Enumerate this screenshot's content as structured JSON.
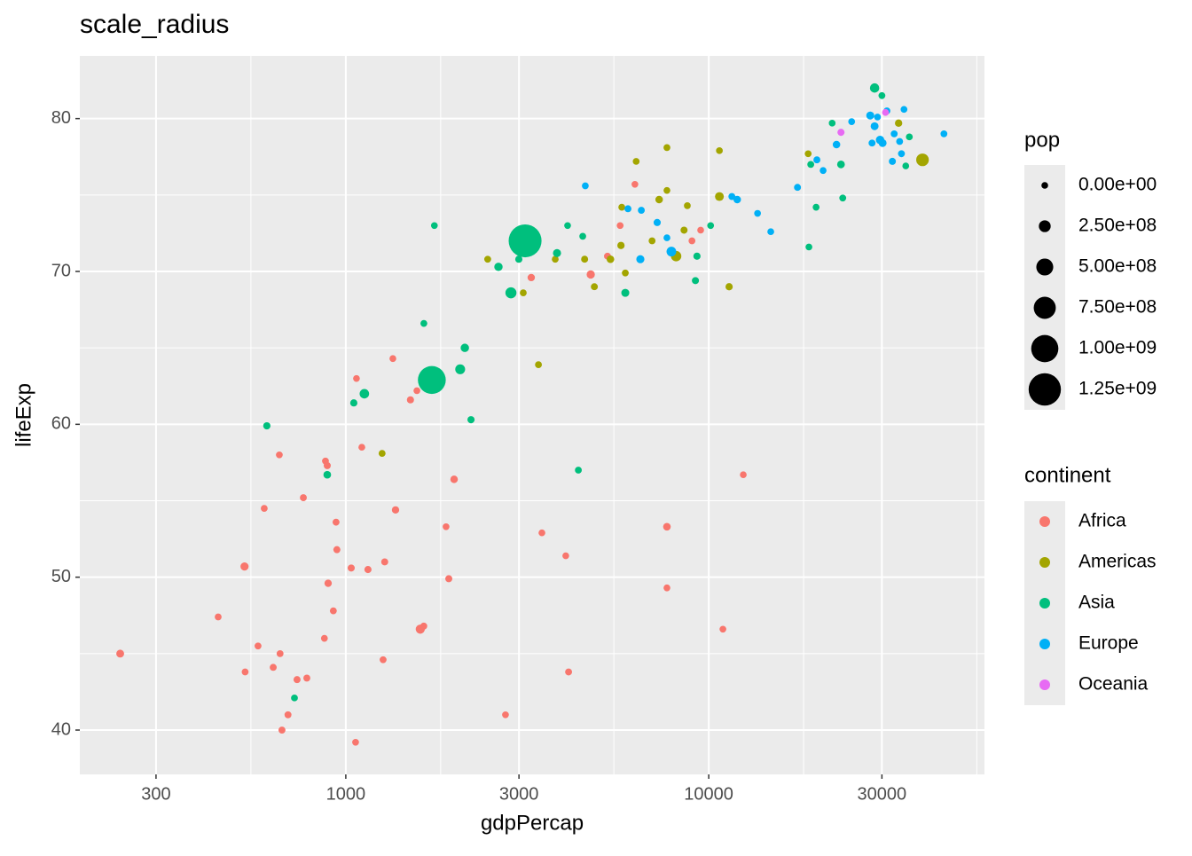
{
  "chart_data": {
    "type": "scatter",
    "title": "scale_radius",
    "x_label": "gdpPercap",
    "y_label": "lifeExp",
    "xlog": true,
    "xlim": [
      185,
      57500
    ],
    "ylim": [
      37.1,
      84.1
    ],
    "xticks": [
      300,
      1000,
      3000,
      10000,
      30000
    ],
    "yticks": [
      40,
      50,
      60,
      70,
      80
    ],
    "grid": true,
    "size_title": "pop",
    "size_ticks": [
      {
        "value": 0,
        "label": "0.00e+00"
      },
      {
        "value": 250000000,
        "label": "2.50e+08"
      },
      {
        "value": 500000000,
        "label": "5.00e+08"
      },
      {
        "value": 750000000,
        "label": "7.50e+08"
      },
      {
        "value": 1000000000,
        "label": "1.00e+09"
      },
      {
        "value": 1250000000,
        "label": "1.25e+09"
      }
    ],
    "color_title": "continent",
    "legend": "right",
    "series": [
      {
        "name": "Africa",
        "color": "#F8766D",
        "x": [
          239,
          445,
          526,
          528,
          573,
          596,
          631,
          656,
          659,
          667,
          693,
          734,
          764,
          781,
          879,
          889,
          873,
          894,
          924,
          940,
          945,
          1035,
          1070,
          1064,
          1107,
          1151,
          1267,
          1280,
          1348,
          1371,
          1507,
          1570,
          1604,
          1640,
          1889,
          1922,
          1988,
          2754,
          3243,
          3470,
          4037,
          4110,
          4730,
          5260,
          5700,
          6260,
          7670,
          7670,
          8990,
          9500,
          10940,
          12450
        ],
        "values": [
          45.0,
          47.4,
          50.7,
          43.8,
          45.5,
          54.5,
          44.1,
          58.0,
          45.0,
          40.0,
          41.0,
          43.3,
          55.2,
          43.4,
          57.6,
          57.3,
          46.0,
          49.6,
          47.8,
          53.6,
          51.8,
          50.6,
          63.0,
          39.2,
          58.5,
          50.5,
          44.6,
          51.0,
          64.3,
          54.4,
          61.6,
          62.2,
          46.6,
          46.8,
          53.3,
          49.9,
          56.4,
          41.0,
          69.6,
          52.9,
          51.4,
          43.8,
          69.8,
          71.0,
          73.0,
          75.7,
          53.3,
          49.3,
          72.0,
          72.7,
          46.6,
          56.7
        ],
        "sizes": [
          55000000,
          6000000,
          68000000,
          5000000,
          8000000,
          6000000,
          12000000,
          4000000,
          7000000,
          13000000,
          11000000,
          17000000,
          9000000,
          11000000,
          6000000,
          16000000,
          3000000,
          30000000,
          8000000,
          11000000,
          16000000,
          17000000,
          1000000,
          5000000,
          4000000,
          20000000,
          9000000,
          12000000,
          3000000,
          31000000,
          20000000,
          2000000,
          119000000,
          10000000,
          2000000,
          16000000,
          37000000,
          2000000,
          31000000,
          2000000,
          1000000,
          11000000,
          73000000,
          10000000,
          5000000,
          1000000,
          44000000,
          2000000,
          5000000,
          1000000,
          1000000,
          1000000
        ]
      },
      {
        "name": "Americas",
        "color": "#A3A500",
        "x": [
          1259,
          2460,
          3083,
          3395,
          3776,
          4550,
          4840,
          5360,
          5730,
          5760,
          5890,
          6310,
          6980,
          7300,
          7670,
          7670,
          8130,
          8550,
          8730,
          10700,
          10700,
          11380,
          18790,
          33350,
          38810
        ],
        "values": [
          58.1,
          70.8,
          68.6,
          63.9,
          70.8,
          70.8,
          69.0,
          70.8,
          71.7,
          74.2,
          69.9,
          77.2,
          72.0,
          74.7,
          78.1,
          75.3,
          71.0,
          72.7,
          74.3,
          77.9,
          74.9,
          69.0,
          77.7,
          79.7,
          77.3
        ],
        "sizes": [
          8000000,
          7000000,
          6000000,
          8000000,
          5000000,
          12000000,
          12000000,
          41000000,
          27000000,
          6000000,
          6000000,
          4000000,
          8000000,
          39000000,
          4000000,
          3000000,
          180000000,
          15000000,
          3000000,
          1000000,
          102000000,
          25000000,
          4000000,
          31000000,
          288000000
        ]
      },
      {
        "name": "Asia",
        "color": "#00BF7D",
        "x": [
          606,
          722,
          889,
          1052,
          1125,
          1641,
          1726,
          1754,
          2066,
          2128,
          2213,
          2634,
          2851,
          2997,
          3119,
          3819,
          4084,
          4373,
          4496,
          5890,
          9190,
          9280,
          10120,
          18880,
          19100,
          19760,
          21880,
          23140,
          23400,
          28640,
          30000,
          34900,
          35700
        ],
        "values": [
          59.9,
          42.1,
          56.7,
          61.4,
          62.0,
          66.6,
          62.9,
          73.0,
          63.6,
          65.0,
          60.3,
          70.3,
          68.6,
          70.8,
          72.0,
          71.2,
          73.0,
          57.0,
          72.3,
          68.6,
          69.4,
          71.0,
          73.0,
          71.6,
          77.0,
          74.2,
          79.7,
          77.0,
          74.8,
          82.0,
          81.5,
          76.9,
          78.8
        ],
        "sizes": [
          25000000,
          5000000,
          45000000,
          24000000,
          135000000,
          5000000,
          1034000000,
          1000000,
          154000000,
          82000000,
          22000000,
          80000000,
          211000000,
          22000000,
          1280000000,
          66000000,
          1000000,
          8000000,
          3000000,
          62000000,
          18000000,
          24000000,
          3000000,
          2000000,
          6000000,
          4000000,
          1000000,
          47000000,
          7000000,
          127000000,
          7000000,
          1000000,
          4000000
        ]
      },
      {
        "name": "Europe",
        "color": "#00B0F6",
        "x": [
          4570,
          5990,
          6480,
          6520,
          7210,
          7670,
          7890,
          11580,
          11980,
          13630,
          14820,
          17560,
          19860,
          20660,
          22490,
          24760,
          27860,
          28180,
          28640,
          29170,
          29650,
          30130,
          30970,
          32060,
          32430,
          33570,
          33960,
          34510,
          44460
        ],
        "values": [
          75.6,
          74.1,
          70.8,
          74.0,
          73.2,
          72.2,
          71.3,
          74.9,
          74.7,
          73.8,
          72.6,
          75.5,
          77.3,
          76.6,
          78.3,
          79.8,
          80.2,
          78.4,
          79.5,
          80.1,
          78.6,
          78.4,
          80.5,
          77.2,
          79.0,
          78.5,
          77.7,
          80.6,
          79.0
        ],
        "sizes": [
          4000000,
          9000000,
          67000000,
          8000000,
          22000000,
          4000000,
          145000000,
          10000000,
          38000000,
          2000000,
          5000000,
          10000000,
          10000000,
          5000000,
          40000000,
          4000000,
          60000000,
          10000000,
          57000000,
          5000000,
          82000000,
          59000000,
          8000000,
          16000000,
          10000000,
          7000000,
          8000000,
          290000,
          4500000
        ]
      },
      {
        "name": "Oceania",
        "color": "#E76BF3",
        "x": [
          23140,
          30690
        ],
        "values": [
          79.1,
          80.4
        ],
        "sizes": [
          20000000,
          4000000
        ]
      }
    ]
  }
}
